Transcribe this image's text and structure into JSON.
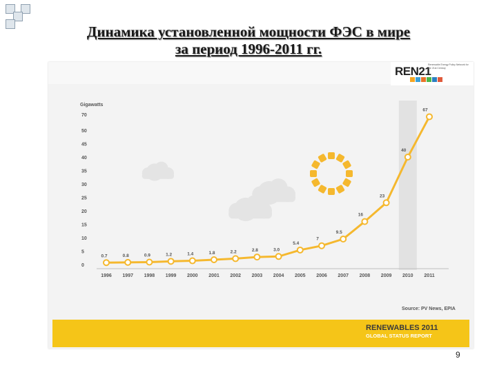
{
  "slide": {
    "title_line1": "Динамика установленной  мощности ФЭС в мире",
    "title_line2": "за период 1996-2011 гг.",
    "page_number": "9"
  },
  "logo": {
    "text": "REN21",
    "subtitle": "Renewable Energy Policy Network for the 21st Century",
    "icon_colors": [
      "#f5a623",
      "#3aa0d8",
      "#e8732a",
      "#4db848",
      "#2c7fc1",
      "#e05a3b"
    ]
  },
  "footer": {
    "source": "Source: PV News, EPIA",
    "report_title": "RENEWABLES 2011",
    "report_subtitle": "GLOBAL STATUS REPORT",
    "band_color": "#f5c518"
  },
  "chart_data": {
    "type": "line",
    "ylabel": "Gigawatts",
    "categories": [
      "1996",
      "1997",
      "1998",
      "1999",
      "2000",
      "2001",
      "2002",
      "2003",
      "2004",
      "2005",
      "2006",
      "2007",
      "2008",
      "2009",
      "2010",
      "2011"
    ],
    "values": [
      0.7,
      0.8,
      0.9,
      1.2,
      1.4,
      1.8,
      2.2,
      2.8,
      3.0,
      5.4,
      7,
      9.5,
      16,
      23,
      40,
      67
    ],
    "data_labels": [
      "0.7",
      "0.8",
      "0.9",
      "1.2",
      "1.4",
      "1.8",
      "2.2",
      "2.8",
      "3.0",
      "5.4",
      "7",
      "9.5",
      "16",
      "23",
      "40",
      "67"
    ],
    "yticks": [
      0,
      5,
      10,
      15,
      20,
      25,
      30,
      35,
      40,
      45,
      50,
      70
    ],
    "ylim": [
      0,
      70
    ],
    "y_axis_break": "between 50 and 70",
    "highlighted_category": "2010",
    "grid": false,
    "line_color": "#f5b82e",
    "marker_fill": "#ffffff",
    "label_color": "#555555"
  }
}
